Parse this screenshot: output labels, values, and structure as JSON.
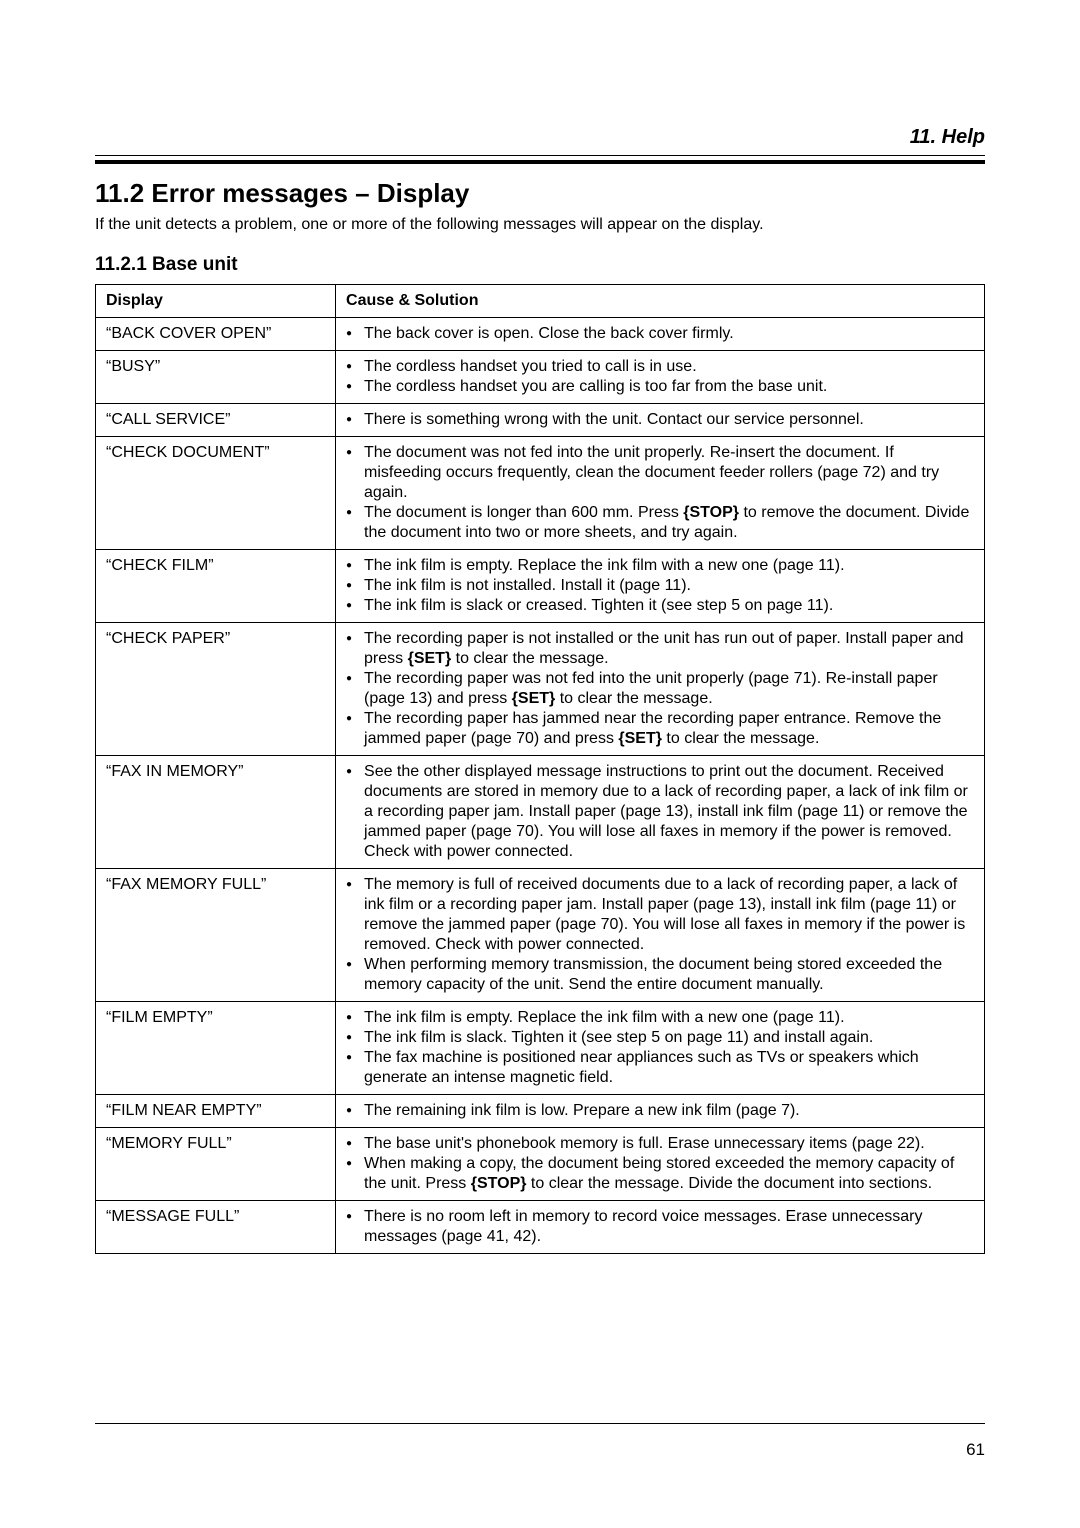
{
  "chapter": "11. Help",
  "section_title": "11.2 Error messages – Display",
  "intro": "If the unit detects a problem, one or more of the following messages will appear on the display.",
  "subsection_title": "11.2.1 Base unit",
  "columns": {
    "display": "Display",
    "cause": "Cause & Solution"
  },
  "rows": [
    {
      "display": "“BACK COVER OPEN”",
      "causes": [
        [
          {
            "t": "The back cover is open. Close the back cover firmly."
          }
        ]
      ]
    },
    {
      "display": "“BUSY”",
      "causes": [
        [
          {
            "t": "The cordless handset you tried to call is in use."
          }
        ],
        [
          {
            "t": "The cordless handset you are calling is too far from the base unit."
          }
        ]
      ]
    },
    {
      "display": "“CALL SERVICE”",
      "causes": [
        [
          {
            "t": "There is something wrong with the unit. Contact our service personnel."
          }
        ]
      ]
    },
    {
      "display": "“CHECK DOCUMENT”",
      "causes": [
        [
          {
            "t": "The document was not fed into the unit properly. Re-insert the document. If misfeeding occurs frequently, clean the document feeder rollers (page 72) and try again."
          }
        ],
        [
          {
            "t": "The document is longer than 600 mm. Press "
          },
          {
            "t": "{STOP}",
            "key": true
          },
          {
            "t": " to remove the document. Divide the document into two or more sheets, and try again."
          }
        ]
      ]
    },
    {
      "display": "“CHECK FILM”",
      "causes": [
        [
          {
            "t": "The ink film is empty. Replace the ink film with a new one (page 11)."
          }
        ],
        [
          {
            "t": "The ink film is not installed. Install it (page 11)."
          }
        ],
        [
          {
            "t": "The ink film is slack or creased. Tighten it (see step 5 on page 11)."
          }
        ]
      ]
    },
    {
      "display": "“CHECK PAPER”",
      "causes": [
        [
          {
            "t": "The recording paper is not installed or the unit has run out of paper. Install paper and press "
          },
          {
            "t": "{SET}",
            "key": true
          },
          {
            "t": " to clear the message."
          }
        ],
        [
          {
            "t": "The recording paper was not fed into the unit properly (page 71). Re-install paper (page 13) and press "
          },
          {
            "t": "{SET}",
            "key": true
          },
          {
            "t": " to clear the message."
          }
        ],
        [
          {
            "t": "The recording paper has jammed near the recording paper entrance. Remove the jammed paper (page 70) and press "
          },
          {
            "t": "{SET}",
            "key": true
          },
          {
            "t": " to clear the message."
          }
        ]
      ]
    },
    {
      "display": "“FAX IN MEMORY”",
      "causes": [
        [
          {
            "t": "See the other displayed message instructions to print out the document. Received documents are stored in memory due to a lack of recording paper, a lack of ink film or a recording paper jam. Install paper (page 13), install ink film (page 11) or remove the jammed paper (page 70). You will lose all faxes in memory if the power is removed. Check with power connected."
          }
        ]
      ]
    },
    {
      "display": "“FAX MEMORY FULL”",
      "causes": [
        [
          {
            "t": "The memory is full of received documents due to a lack of recording paper, a lack of ink film or a recording paper jam. Install paper (page 13), install ink film (page 11) or remove the jammed paper (page 70). You will lose all faxes in memory if the power is removed. Check with power connected."
          }
        ],
        [
          {
            "t": "When performing memory transmission, the document being stored exceeded the memory capacity of the unit. Send the entire document manually."
          }
        ]
      ]
    },
    {
      "display": "“FILM EMPTY”",
      "causes": [
        [
          {
            "t": "The ink film is empty. Replace the ink film with a new one (page 11)."
          }
        ],
        [
          {
            "t": "The ink film is slack. Tighten it (see step 5 on page 11) and install again."
          }
        ],
        [
          {
            "t": "The fax machine is positioned near appliances such as TVs or speakers which generate an intense magnetic field."
          }
        ]
      ]
    },
    {
      "display": "“FILM NEAR EMPTY”",
      "causes": [
        [
          {
            "t": "The remaining ink film is low. Prepare a new ink film (page 7)."
          }
        ]
      ]
    },
    {
      "display": "“MEMORY FULL”",
      "causes": [
        [
          {
            "t": "The base unit's phonebook memory is full. Erase unnecessary items (page 22)."
          }
        ],
        [
          {
            "t": "When making a copy, the document being stored exceeded the memory capacity of the unit. Press "
          },
          {
            "t": "{STOP}",
            "key": true
          },
          {
            "t": " to clear the message. Divide the document into sections."
          }
        ]
      ]
    },
    {
      "display": "“MESSAGE FULL”",
      "causes": [
        [
          {
            "t": "There is no room left in memory to record voice messages. Erase unnecessary messages (page 41, 42)."
          }
        ]
      ]
    }
  ],
  "page_number": "61"
}
